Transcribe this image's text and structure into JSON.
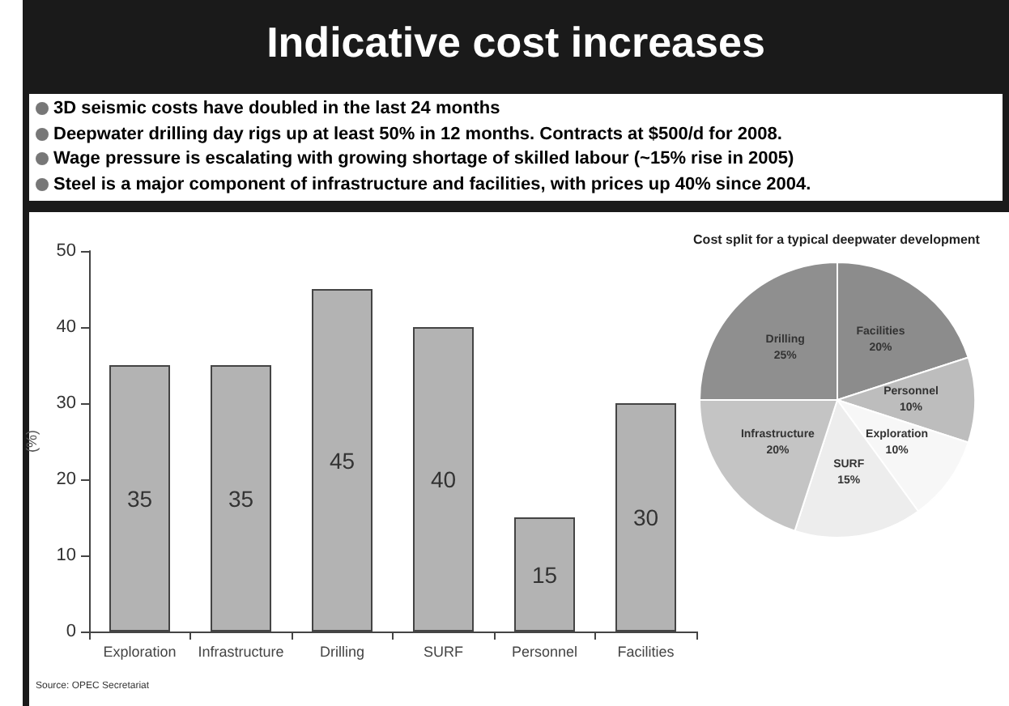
{
  "chart_data": [
    {
      "type": "bar",
      "title": "Indicative cost increases",
      "annotations": [
        "3D seismic costs have doubled in the last 24 months",
        "Deepwater drilling day rigs up at least 50% in 12 months. Contracts at $500/d for 2008.",
        "Wage pressure is escalating with growing shortage of skilled labour (~15% rise  in 2005)",
        "Steel is a major component of infrastructure and facilities, with prices up 40% since 2004.",
        "Source: OPEC Secretariat"
      ],
      "ylabel": "(%)",
      "categories": [
        "Exploration",
        "Infrastructure",
        "Drilling",
        "SURF",
        "Personnel",
        "Facilities"
      ],
      "values": [
        35,
        35,
        45,
        40,
        15,
        30
      ],
      "color": "#b3b3b3",
      "ylim": [
        0,
        50
      ],
      "yticks": [
        0,
        10,
        20,
        30,
        40,
        50
      ],
      "data_labels": true
    },
    {
      "type": "pie",
      "title": "Cost split for a typical deepwater development",
      "categories": [
        "Facilities",
        "Personnel",
        "Exploration",
        "SURF",
        "Infrastructure",
        "Drilling"
      ],
      "values": [
        20,
        10,
        10,
        15,
        20,
        25
      ],
      "value_labels": [
        "20%",
        "10%",
        "10%",
        "15%",
        "20%",
        "25%"
      ],
      "colors": [
        "#8c8c8c",
        "#bdbdbd",
        "#f7f7f7",
        "#ededed",
        "#c4c4c4",
        "#8f8f8f"
      ]
    }
  ]
}
